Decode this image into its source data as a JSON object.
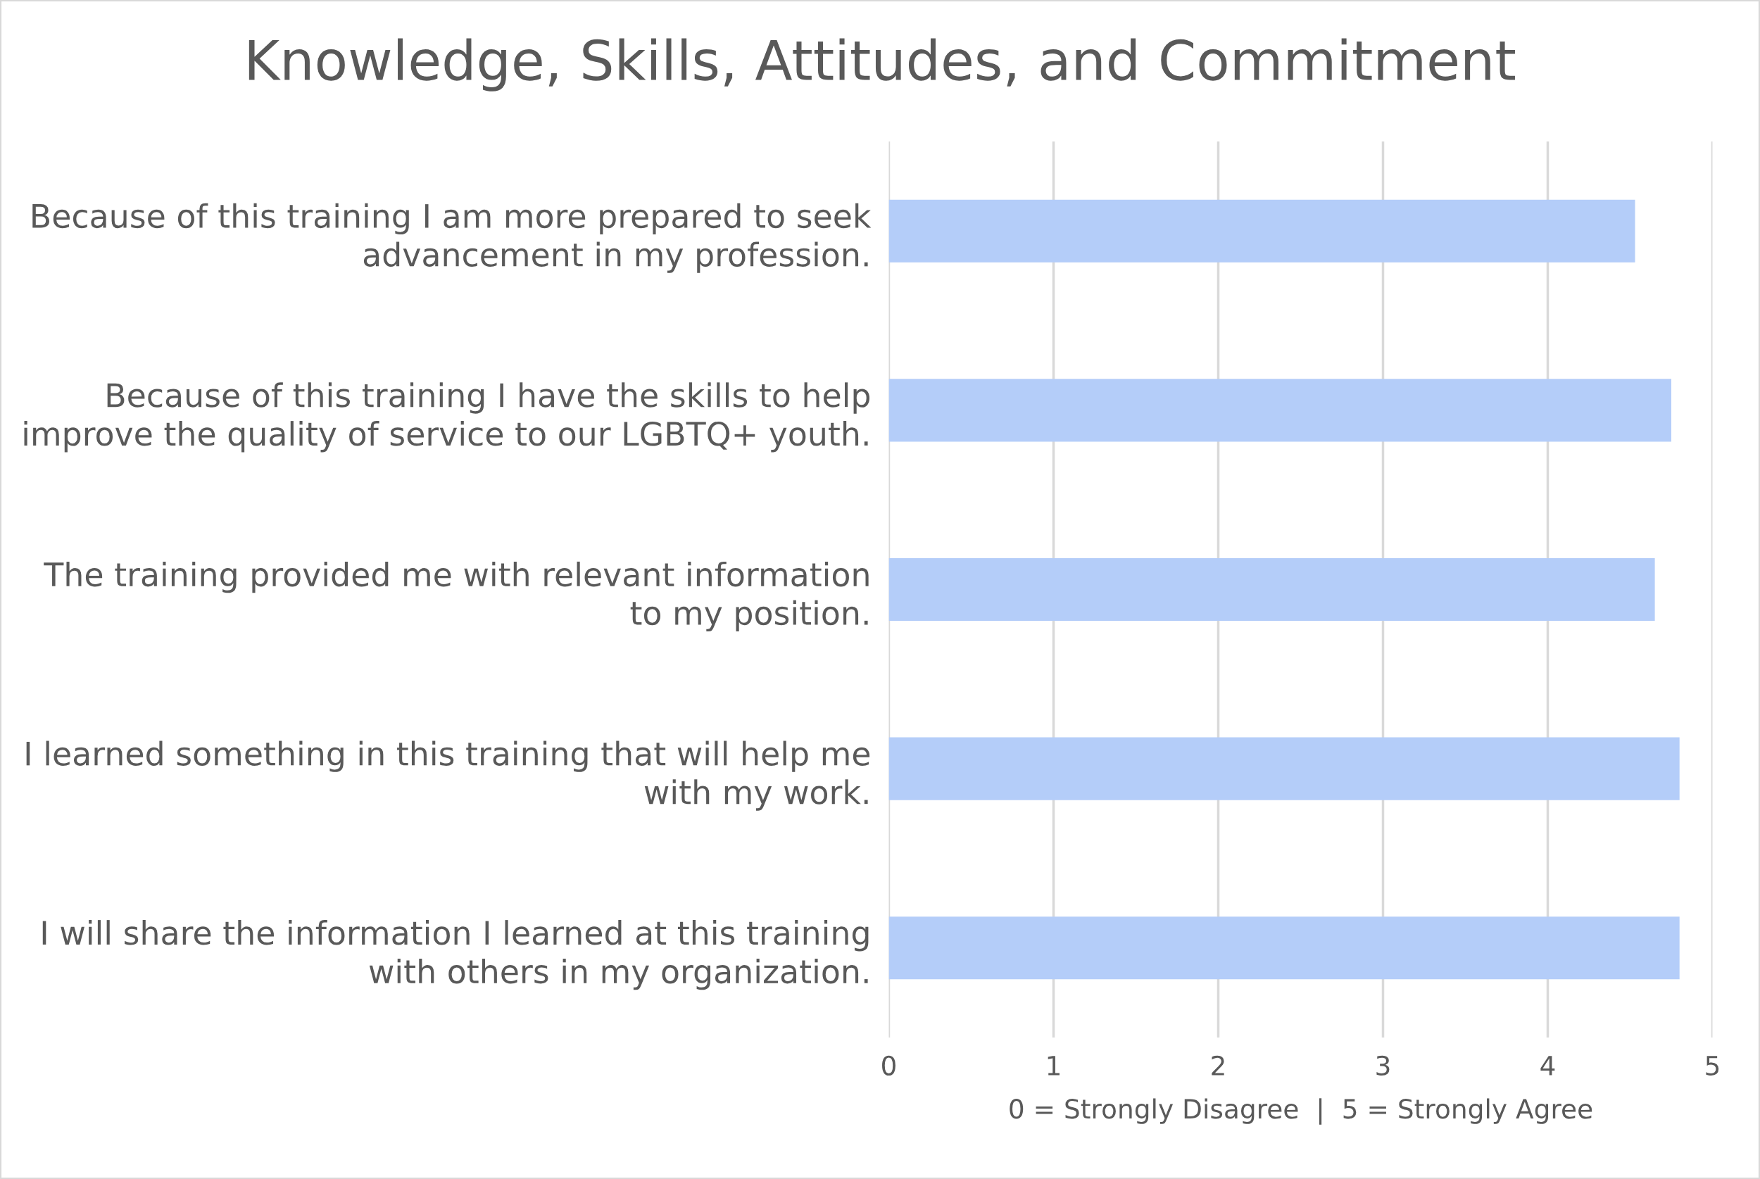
{
  "chart_data": {
    "type": "bar",
    "orientation": "horizontal",
    "title": "Knowledge, Skills, Attitudes, and Commitment",
    "categories": [
      "Because of this training I am more prepared to seek\nadvancement in my profession.",
      "Because of this training I have the skills to help\nimprove the quality of service to our LGBTQ+ youth.",
      "The training provided me with relevant information\nto my position.",
      "I learned something in this training that will help me\nwith my work.",
      "I will share the information I learned at this training\nwith others in my organization."
    ],
    "values": [
      4.53,
      4.75,
      4.65,
      4.8,
      4.8
    ],
    "color": "#b4cdf9",
    "xlabel": "0 = Strongly Disagree  |  5 = Strongly Agree",
    "xlim": [
      0,
      5
    ],
    "xticks": [
      0,
      1,
      2,
      3,
      4,
      5
    ],
    "grid": "x",
    "legend": false
  }
}
